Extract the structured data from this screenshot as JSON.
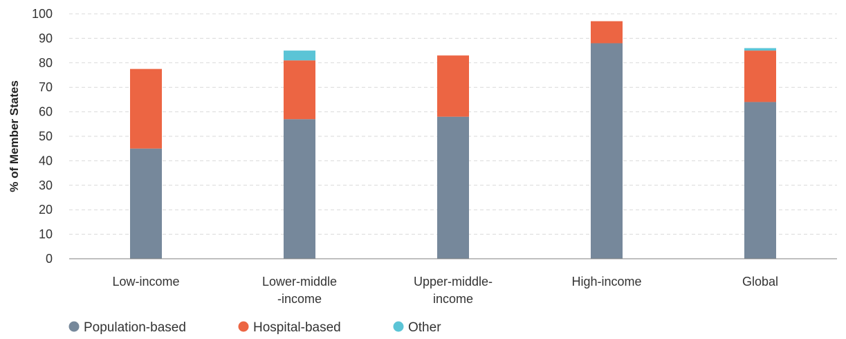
{
  "chart_data": {
    "type": "bar",
    "stacked": true,
    "categories": [
      [
        "Low-income"
      ],
      [
        "Lower-middle",
        "-income"
      ],
      [
        "Upper-middle-",
        "income"
      ],
      [
        "High-income"
      ],
      [
        "Global"
      ]
    ],
    "series": [
      {
        "name": "Population-based",
        "color": "#76889b",
        "values": [
          45,
          57,
          58,
          88,
          64
        ]
      },
      {
        "name": "Hospital-based",
        "color": "#ec6543",
        "values": [
          32.5,
          24,
          25,
          9,
          21
        ]
      },
      {
        "name": "Other",
        "color": "#5bc4d6",
        "values": [
          0,
          4,
          0,
          0,
          1
        ]
      }
    ],
    "ylabel": "% of Member States",
    "ylim": [
      0,
      100
    ],
    "yticks": [
      0,
      10,
      20,
      30,
      40,
      50,
      60,
      70,
      80,
      90,
      100
    ],
    "grid": true,
    "legend_position": "bottom-left"
  }
}
